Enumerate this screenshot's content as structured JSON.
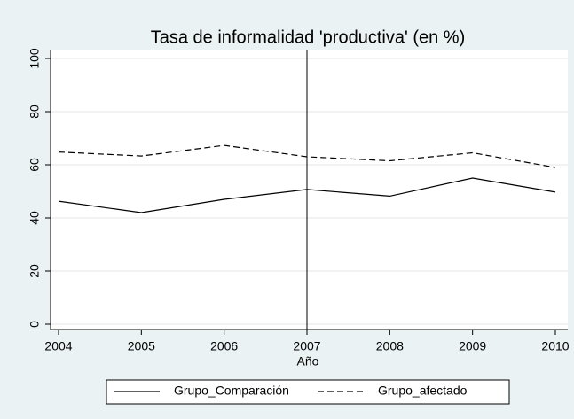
{
  "chart_data": {
    "type": "line",
    "title": "Tasa de informalidad 'productiva' (en %)",
    "x_label": "Año",
    "x": [
      2004,
      2005,
      2006,
      2007,
      2008,
      2009,
      2010
    ],
    "series": [
      {
        "name": "Grupo_Comparación",
        "color": "#000000",
        "dash": "solid",
        "values": [
          46.3,
          42,
          47,
          50.7,
          48.2,
          55,
          49.7
        ]
      },
      {
        "name": "Grupo_afectado",
        "color": "#000000",
        "dash": "dashed",
        "values": [
          64.8,
          63.3,
          67.3,
          63,
          61.5,
          64.5,
          59
        ]
      }
    ],
    "xlim": [
      2004,
      2010
    ],
    "xticks": [
      2004,
      2005,
      2006,
      2007,
      2008,
      2009,
      2010
    ],
    "ylim": [
      0,
      100
    ],
    "yticks": [
      0,
      20,
      40,
      60,
      80,
      100
    ],
    "xline": 2007,
    "grid": true,
    "legend": "bottom"
  }
}
